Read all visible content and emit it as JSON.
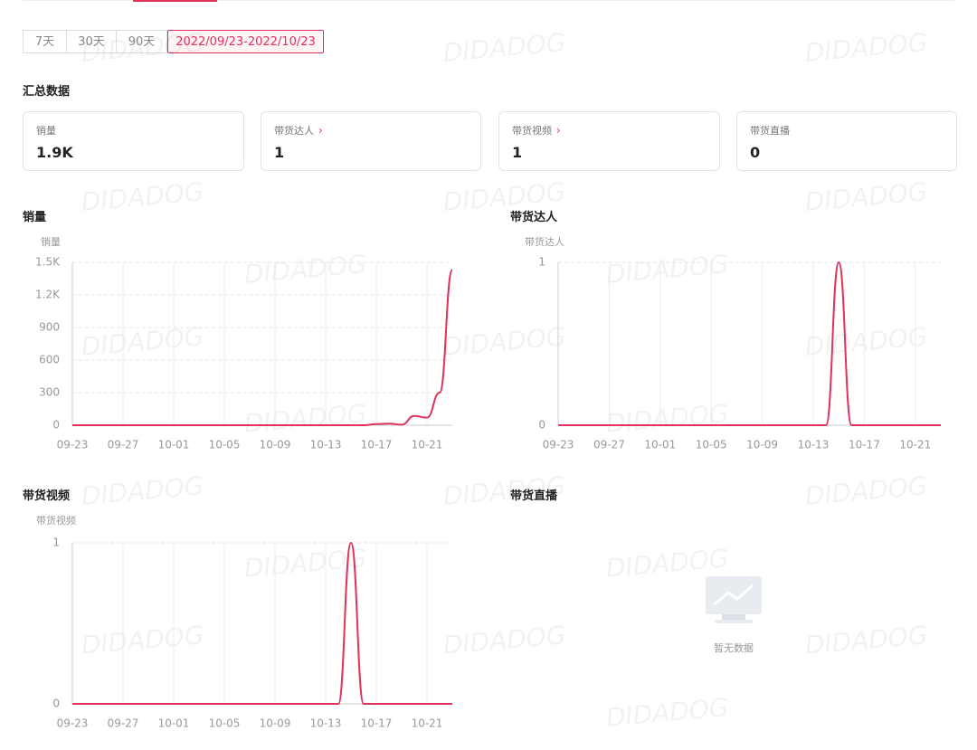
{
  "watermark": "DIDADOG",
  "tabs": [
    "7天",
    "30天",
    "90天",
    "2022/09/23-2022/10/23"
  ],
  "summary": {
    "title": "汇总数据",
    "cards": [
      {
        "label": "销量",
        "value": "1.9K"
      },
      {
        "label": "带货达人",
        "value": "1"
      },
      {
        "label": "带货视频",
        "value": "1"
      },
      {
        "label": "带货直播",
        "value": "0"
      }
    ]
  },
  "chart_data": [
    {
      "type": "line",
      "title": "销量",
      "y_label": "销量",
      "color": "#e0325a",
      "categories": [
        "09-23",
        null,
        null,
        null,
        "09-27",
        null,
        null,
        null,
        "10-01",
        null,
        null,
        null,
        "10-05",
        null,
        null,
        null,
        "10-09",
        null,
        null,
        null,
        "10-13",
        null,
        null,
        null,
        "10-17",
        null,
        null,
        null,
        "10-21",
        null,
        null
      ],
      "values": [
        0,
        0,
        0,
        0,
        0,
        0,
        0,
        0,
        0,
        0,
        0,
        0,
        0,
        0,
        0,
        0,
        0,
        0,
        0,
        0,
        0,
        0,
        0,
        0,
        10,
        15,
        5,
        85,
        70,
        300,
        1430
      ],
      "ylim": [
        0,
        1500
      ],
      "yticks": [
        0,
        300,
        600,
        900,
        {
          "value": 1200,
          "label": "1.2K"
        },
        {
          "value": 1500,
          "label": "1.5K"
        }
      ],
      "grid": true
    },
    {
      "type": "line",
      "title": "带货达人",
      "y_label": "带货达人",
      "color": "#e0325a",
      "categories": [
        "09-23",
        null,
        null,
        null,
        "09-27",
        null,
        null,
        null,
        "10-01",
        null,
        null,
        null,
        "10-05",
        null,
        null,
        null,
        "10-09",
        null,
        null,
        null,
        "10-13",
        null,
        null,
        null,
        "10-17",
        null,
        null,
        null,
        "10-21",
        null,
        null
      ],
      "values": [
        0,
        0,
        0,
        0,
        0,
        0,
        0,
        0,
        0,
        0,
        0,
        0,
        0,
        0,
        0,
        0,
        0,
        0,
        0,
        0,
        0,
        0,
        1,
        0,
        0,
        0,
        0,
        0,
        0,
        0,
        0
      ],
      "ylim": [
        0,
        1
      ],
      "yticks": [
        0,
        1
      ],
      "grid": true
    },
    {
      "type": "line",
      "title": "带货视频",
      "y_label": "带货视频",
      "color": "#e0325a",
      "categories": [
        "09-23",
        null,
        null,
        null,
        "09-27",
        null,
        null,
        null,
        "10-01",
        null,
        null,
        null,
        "10-05",
        null,
        null,
        null,
        "10-09",
        null,
        null,
        null,
        "10-13",
        null,
        null,
        null,
        "10-17",
        null,
        null,
        null,
        "10-21",
        null,
        null
      ],
      "values": [
        0,
        0,
        0,
        0,
        0,
        0,
        0,
        0,
        0,
        0,
        0,
        0,
        0,
        0,
        0,
        0,
        0,
        0,
        0,
        0,
        0,
        0,
        1,
        0,
        0,
        0,
        0,
        0,
        0,
        0,
        0
      ],
      "ylim": [
        0,
        1
      ],
      "yticks": [
        0,
        1
      ],
      "grid": true
    }
  ],
  "live_section": {
    "title": "带货直播",
    "empty_text": "暂无数据"
  }
}
